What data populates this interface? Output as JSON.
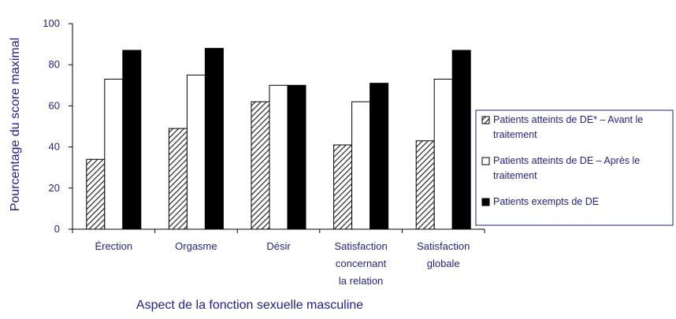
{
  "chart_data": {
    "type": "bar",
    "title": "",
    "xlabel": "Aspect de la fonction sexuelle masculine",
    "ylabel": "Pourcentage du score maximal",
    "ylim": [
      0,
      100
    ],
    "yticks": [
      0,
      20,
      40,
      60,
      80,
      100
    ],
    "grid": false,
    "legend_position": "right",
    "categories": [
      [
        "Érection"
      ],
      [
        "Orgasme"
      ],
      [
        "Désir"
      ],
      [
        "Satisfaction",
        "concernant",
        "la relation"
      ],
      [
        "Satisfaction",
        "globale"
      ]
    ],
    "series": [
      {
        "name": "Patients atteints de DE* – Avant le traitement",
        "legend_lines": [
          "Patients atteints de DE* – Avant le",
          "traitement"
        ],
        "pattern": "hatch",
        "values": [
          34,
          49,
          62,
          41,
          43
        ]
      },
      {
        "name": "Patients atteints de DE – Après le traitement",
        "legend_lines": [
          "Patients atteints de DE – Après le",
          "traitement"
        ],
        "pattern": "white",
        "values": [
          73,
          75,
          70,
          62,
          73
        ]
      },
      {
        "name": "Patients exempts de DE",
        "legend_lines": [
          "Patients exempts de DE"
        ],
        "pattern": "black",
        "values": [
          87,
          88,
          70,
          71,
          87
        ]
      }
    ],
    "colors": {
      "axis_text": "#1f1f8f",
      "bar_outline": "#000000",
      "legend_border": "#1f1f8f"
    }
  }
}
